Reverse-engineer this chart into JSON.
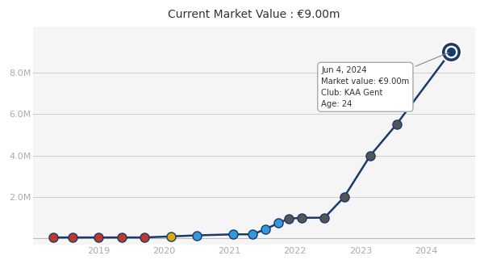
{
  "title": "Current Market Value : €9.00m",
  "title_fontsize": 10,
  "background_color": "#ffffff",
  "plot_bg_color": "#f5f5f5",
  "line_color": "#1a3a6b",
  "line_width": 1.8,
  "x_data": [
    2018.3,
    2018.6,
    2019.0,
    2019.35,
    2019.7,
    2020.1,
    2020.5,
    2021.05,
    2021.35,
    2021.55,
    2021.75,
    2021.9,
    2022.1,
    2022.45,
    2022.75,
    2023.15,
    2023.55,
    2024.38
  ],
  "y_data": [
    0.05,
    0.05,
    0.05,
    0.05,
    0.05,
    0.1,
    0.15,
    0.2,
    0.2,
    0.45,
    0.75,
    0.95,
    1.0,
    1.0,
    2.0,
    4.0,
    5.5,
    9.0
  ],
  "yticks": [
    2.0,
    4.0,
    6.0,
    8.0
  ],
  "ytick_labels": [
    "2.0M",
    "4.0M",
    "6.0M",
    "8.0M"
  ],
  "xlim": [
    2018.0,
    2024.75
  ],
  "ylim": [
    -0.3,
    10.2
  ],
  "xticks": [
    2019,
    2020,
    2021,
    2022,
    2023,
    2024
  ],
  "xtick_labels": [
    "2019",
    "2020",
    "2021",
    "2022",
    "2023",
    "2024"
  ],
  "grid_color": "#cccccc",
  "tooltip_text": "Jun 4, 2024\nMarket value: €9.00m\nClub: KAA Gent\nAge: 24",
  "marker_color": "#1a3a6b",
  "tick_label_color": "#aaaaaa",
  "tick_label_size": 8,
  "baseline_color": "#bbbbbb"
}
